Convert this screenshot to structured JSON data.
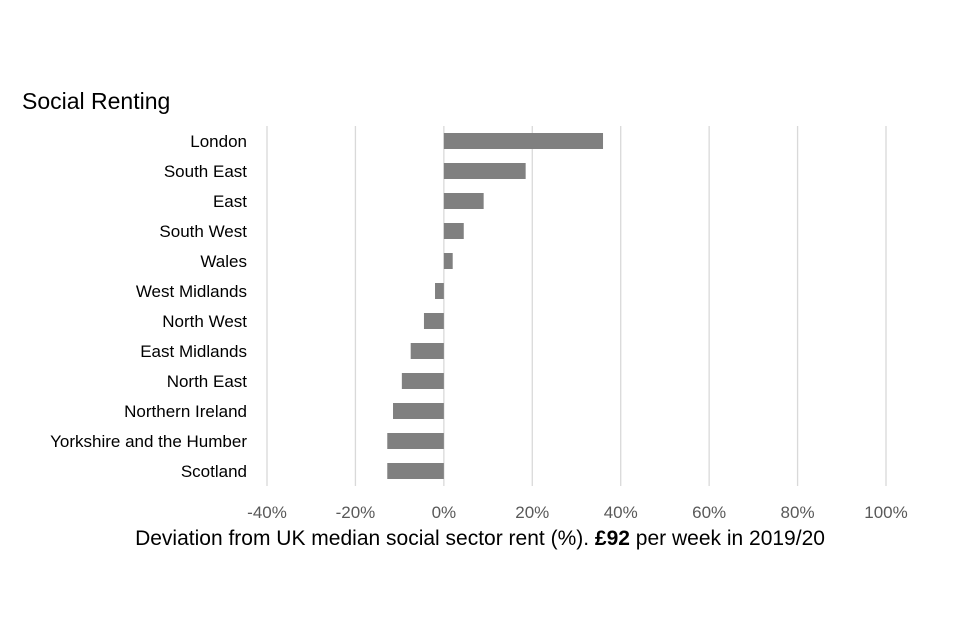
{
  "chart_data": {
    "type": "bar",
    "orientation": "horizontal",
    "title": "Social Renting",
    "categories": [
      "London",
      "South East",
      "East",
      "South West",
      "Wales",
      "West Midlands",
      "North West",
      "East Midlands",
      "North East",
      "Northern Ireland",
      "Yorkshire and the Humber",
      "Scotland"
    ],
    "values": [
      36,
      18.5,
      9,
      4.5,
      2,
      -2,
      -4.5,
      -7.5,
      -9.5,
      -11.5,
      -12.8,
      -12.8
    ],
    "xlim": [
      -40,
      100
    ],
    "xticks": [
      -40,
      -20,
      0,
      20,
      40,
      60,
      80,
      100
    ],
    "xtick_labels": [
      "-40%",
      "-20%",
      "0%",
      "20%",
      "40%",
      "60%",
      "80%",
      "100%"
    ],
    "xlabel_parts": {
      "before": "Deviation from UK median  social sector rent (%).  ",
      "bold": "£92",
      "after": " per week  in 2019/20"
    },
    "ylabel": "",
    "grid": "vertical",
    "legend": "none",
    "colors": {
      "bar": "#808080",
      "grid": "#d9d9d9",
      "text": "#595959"
    }
  }
}
